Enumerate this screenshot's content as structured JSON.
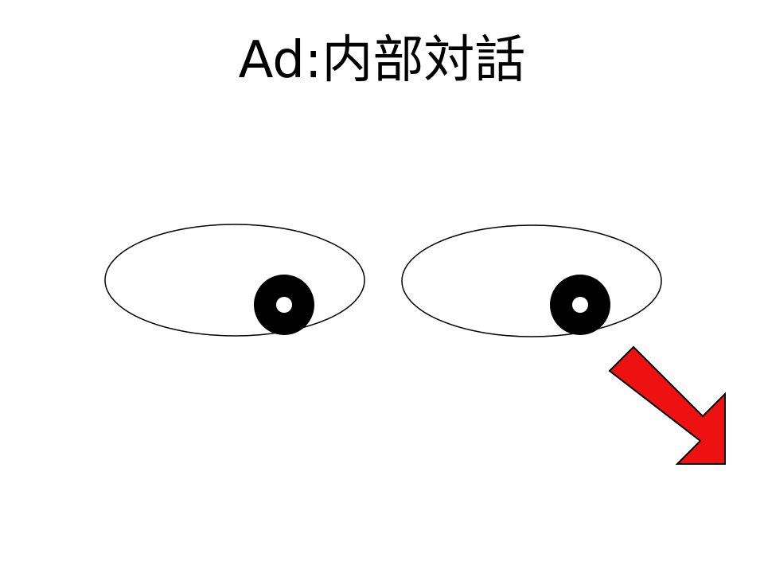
{
  "slide": {
    "title": "Ad:内部対話"
  },
  "figure": {
    "eye_outline_color": "#000000",
    "pupil_color": "#000000",
    "pupil_highlight_color": "#ffffff",
    "arrow_fill_color": "#ee1111",
    "arrow_stroke_color": "#000000",
    "arrow_direction": "down-right"
  }
}
